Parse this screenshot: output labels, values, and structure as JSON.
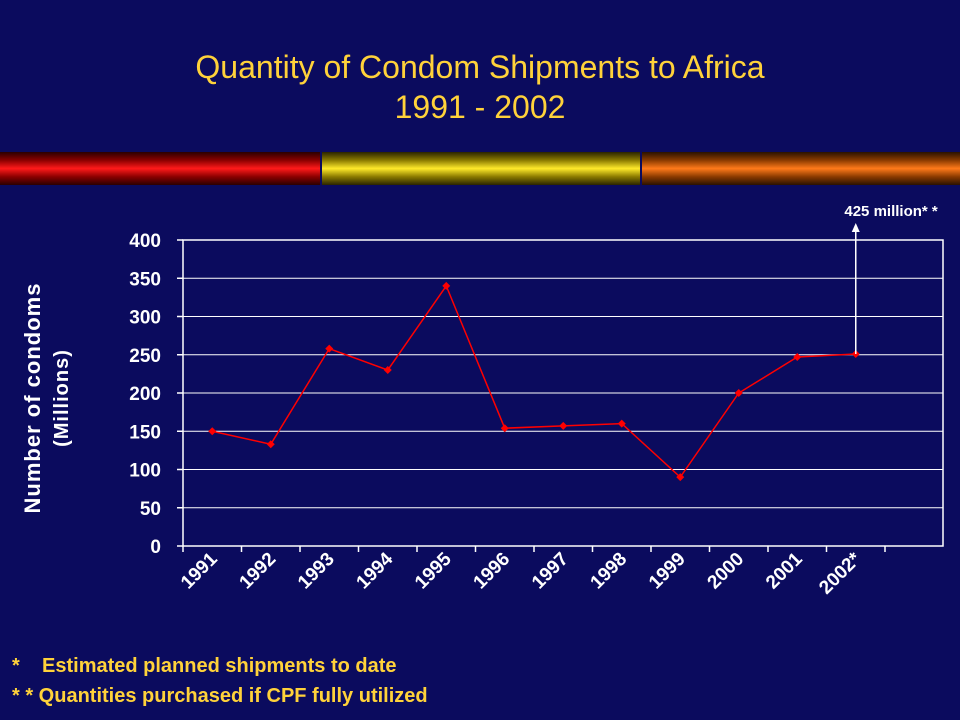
{
  "slide": {
    "title_line1": "Quantity of Condom Shipments to Africa",
    "title_line2": "1991 - 2002",
    "note1": "*    Estimated planned shipments to date",
    "note2": "* * Quantities purchased if CPF fully utilized"
  },
  "colors": {
    "background": "#0b0b5e",
    "title": "#ffd23a",
    "series_line": "#ff0000",
    "axis_text": "#ffffff",
    "plot_frame": "#ffffff"
  },
  "chart_data": {
    "type": "line",
    "ylabel": "Number of condoms",
    "ylabel_unit": "(Millions)",
    "xlabel": "",
    "categories": [
      "1991",
      "1992",
      "1993",
      "1994",
      "1995",
      "1996",
      "1997",
      "1998",
      "1999",
      "2000",
      "2001",
      "2002*"
    ],
    "yticks": [
      "0",
      "50",
      "100",
      "150",
      "200",
      "250",
      "300",
      "350",
      "400"
    ],
    "ylim": [
      0,
      400
    ],
    "grid": true,
    "series": [
      {
        "values": [
          150,
          133,
          258,
          230,
          340,
          154,
          157,
          160,
          90,
          200,
          247,
          251
        ]
      }
    ],
    "annotation": {
      "text": "425 million* *",
      "category": "2002*"
    }
  }
}
